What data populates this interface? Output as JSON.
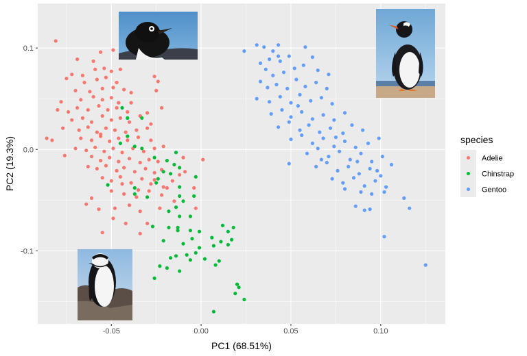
{
  "chart_data": {
    "type": "scatter",
    "xlabel": "PC1 (68.51%)",
    "ylabel": "PC2 (19.3%)",
    "xlim": [
      -0.091,
      0.136
    ],
    "ylim": [
      -0.172,
      0.144
    ],
    "x_ticks": [
      -0.05,
      0.0,
      0.05,
      0.1
    ],
    "x_tick_labels": [
      "-0.05",
      "0.00",
      "0.05",
      "0.10"
    ],
    "y_ticks": [
      -0.1,
      0.0,
      0.1
    ],
    "y_tick_labels": [
      "-0.1",
      "0.0",
      "0.1"
    ],
    "grid": true,
    "legend": {
      "title": "species",
      "position": "right"
    },
    "series": [
      {
        "name": "Adelie",
        "color": "#F8766D",
        "points": [
          [
            -0.081,
            0.107
          ],
          [
            -0.056,
            0.096
          ],
          [
            -0.069,
            0.089
          ],
          [
            -0.06,
            0.087
          ],
          [
            -0.049,
            0.098
          ],
          [
            -0.066,
            0.073
          ],
          [
            -0.059,
            0.079
          ],
          [
            -0.054,
            0.08
          ],
          [
            -0.05,
            0.077
          ],
          [
            -0.045,
            0.079
          ],
          [
            -0.072,
            0.074
          ],
          [
            -0.075,
            0.07
          ],
          [
            -0.065,
            0.066
          ],
          [
            -0.058,
            0.069
          ],
          [
            -0.053,
            0.071
          ],
          [
            -0.047,
            0.066
          ],
          [
            -0.026,
            0.072
          ],
          [
            -0.024,
            0.067
          ],
          [
            -0.07,
            0.058
          ],
          [
            -0.062,
            0.057
          ],
          [
            -0.055,
            0.06
          ],
          [
            -0.049,
            0.061
          ],
          [
            -0.043,
            0.059
          ],
          [
            -0.078,
            0.047
          ],
          [
            -0.067,
            0.049
          ],
          [
            -0.06,
            0.052
          ],
          [
            -0.055,
            0.049
          ],
          [
            -0.05,
            0.051
          ],
          [
            -0.046,
            0.046
          ],
          [
            -0.039,
            0.056
          ],
          [
            -0.025,
            0.058
          ],
          [
            -0.08,
            0.039
          ],
          [
            -0.074,
            0.037
          ],
          [
            -0.069,
            0.041
          ],
          [
            -0.063,
            0.039
          ],
          [
            -0.057,
            0.043
          ],
          [
            -0.052,
            0.039
          ],
          [
            -0.047,
            0.041
          ],
          [
            -0.041,
            0.037
          ],
          [
            -0.072,
            0.029
          ],
          [
            -0.066,
            0.031
          ],
          [
            -0.061,
            0.027
          ],
          [
            -0.055,
            0.033
          ],
          [
            -0.05,
            0.029
          ],
          [
            -0.045,
            0.031
          ],
          [
            -0.04,
            0.027
          ],
          [
            -0.034,
            0.033
          ],
          [
            -0.03,
            0.036
          ],
          [
            -0.077,
            0.021
          ],
          [
            -0.068,
            0.019
          ],
          [
            -0.063,
            0.022
          ],
          [
            -0.058,
            0.017
          ],
          [
            -0.053,
            0.021
          ],
          [
            -0.048,
            0.019
          ],
          [
            -0.042,
            0.017
          ],
          [
            -0.036,
            0.019
          ],
          [
            -0.03,
            0.021
          ],
          [
            -0.022,
            0.041
          ],
          [
            -0.086,
            0.011
          ],
          [
            -0.083,
            0.009
          ],
          [
            -0.067,
            0.011
          ],
          [
            -0.061,
            0.009
          ],
          [
            -0.056,
            0.013
          ],
          [
            -0.051,
            0.008
          ],
          [
            -0.046,
            0.011
          ],
          [
            -0.041,
            0.009
          ],
          [
            -0.035,
            0.012
          ],
          [
            -0.028,
            0.009
          ],
          [
            -0.07,
            0.001
          ],
          [
            -0.064,
            -0.001
          ],
          [
            -0.059,
            0.002
          ],
          [
            -0.054,
            -0.002
          ],
          [
            -0.049,
            0.001
          ],
          [
            -0.044,
            -0.003
          ],
          [
            -0.038,
            0.001
          ],
          [
            -0.032,
            -0.002
          ],
          [
            -0.026,
            0.001
          ],
          [
            -0.021,
            0.003
          ],
          [
            -0.076,
            -0.006
          ],
          [
            -0.061,
            -0.007
          ],
          [
            -0.056,
            -0.011
          ],
          [
            -0.051,
            -0.008
          ],
          [
            -0.046,
            -0.012
          ],
          [
            -0.04,
            -0.009
          ],
          [
            -0.034,
            -0.013
          ],
          [
            -0.029,
            -0.01
          ],
          [
            -0.024,
            -0.012
          ],
          [
            -0.01,
            -0.008
          ],
          [
            -0.063,
            -0.017
          ],
          [
            -0.058,
            -0.019
          ],
          [
            -0.053,
            -0.016
          ],
          [
            -0.047,
            -0.021
          ],
          [
            -0.043,
            -0.018
          ],
          [
            -0.037,
            -0.022
          ],
          [
            -0.031,
            -0.019
          ],
          [
            -0.026,
            -0.023
          ],
          [
            -0.022,
            -0.02
          ],
          [
            -0.012,
            -0.025
          ],
          [
            0.001,
            -0.01
          ],
          [
            -0.055,
            -0.028
          ],
          [
            -0.05,
            -0.031
          ],
          [
            -0.045,
            -0.027
          ],
          [
            -0.039,
            -0.033
          ],
          [
            -0.033,
            -0.029
          ],
          [
            -0.028,
            -0.034
          ],
          [
            -0.021,
            -0.037
          ],
          [
            -0.016,
            -0.031
          ],
          [
            -0.05,
            -0.041
          ],
          [
            -0.043,
            -0.044
          ],
          [
            -0.036,
            -0.047
          ],
          [
            -0.029,
            -0.041
          ],
          [
            -0.022,
            -0.045
          ],
          [
            -0.015,
            -0.051
          ],
          [
            -0.004,
            -0.038
          ],
          [
            -0.061,
            -0.048
          ],
          [
            -0.048,
            -0.058
          ],
          [
            -0.04,
            -0.055
          ],
          [
            -0.034,
            -0.061
          ],
          [
            -0.023,
            -0.058
          ],
          [
            -0.003,
            -0.058
          ],
          [
            -0.064,
            -0.054
          ],
          [
            -0.057,
            -0.059
          ],
          [
            -0.049,
            -0.068
          ],
          [
            -0.042,
            -0.073
          ],
          [
            -0.03,
            -0.073
          ],
          [
            -0.055,
            -0.082
          ],
          [
            -0.034,
            -0.083
          ],
          [
            -0.019,
            -0.038
          ],
          [
            -0.026,
            -0.03
          ],
          [
            -0.044,
            -0.034
          ],
          [
            -0.009,
            -0.022
          ],
          [
            -0.056,
            0.015
          ],
          [
            -0.039,
            0.046
          ],
          [
            -0.028,
            0.025
          ],
          [
            -0.035,
            -0.04
          ]
        ]
      },
      {
        "name": "Chinstrap",
        "color": "#00BA38",
        "points": [
          [
            -0.044,
            0.041
          ],
          [
            -0.041,
            0.031
          ],
          [
            -0.033,
            0.031
          ],
          [
            -0.041,
            0.013
          ],
          [
            -0.037,
            0.003
          ],
          [
            -0.045,
            0.006
          ],
          [
            -0.033,
            0.001
          ],
          [
            -0.014,
            -0.003
          ],
          [
            -0.026,
            -0.008
          ],
          [
            -0.019,
            -0.011
          ],
          [
            -0.015,
            -0.015
          ],
          [
            -0.012,
            -0.018
          ],
          [
            -0.021,
            -0.022
          ],
          [
            -0.024,
            -0.029
          ],
          [
            -0.017,
            -0.024
          ],
          [
            -0.012,
            -0.037
          ],
          [
            -0.003,
            -0.027
          ],
          [
            -0.025,
            -0.033
          ],
          [
            -0.037,
            -0.038
          ],
          [
            -0.037,
            -0.044
          ],
          [
            -0.03,
            -0.047
          ],
          [
            -0.012,
            -0.046
          ],
          [
            -0.004,
            -0.046
          ],
          [
            -0.01,
            -0.051
          ],
          [
            -0.014,
            -0.057
          ],
          [
            -0.018,
            -0.061
          ],
          [
            -0.012,
            -0.066
          ],
          [
            -0.006,
            -0.066
          ],
          [
            -0.013,
            -0.077
          ],
          [
            -0.018,
            -0.077
          ],
          [
            -0.027,
            -0.076
          ],
          [
            -0.013,
            -0.08
          ],
          [
            -0.006,
            -0.08
          ],
          [
            -0.001,
            -0.081
          ],
          [
            -0.005,
            -0.088
          ],
          [
            0.006,
            -0.087
          ],
          [
            0.012,
            -0.075
          ],
          [
            0.015,
            -0.081
          ],
          [
            0.011,
            -0.091
          ],
          [
            0.018,
            -0.077
          ],
          [
            0.017,
            -0.089
          ],
          [
            0.015,
            -0.094
          ],
          [
            0.007,
            -0.095
          ],
          [
            -0.001,
            -0.097
          ],
          [
            -0.01,
            -0.093
          ],
          [
            -0.021,
            -0.09
          ],
          [
            -0.003,
            -0.102
          ],
          [
            -0.008,
            -0.104
          ],
          [
            -0.014,
            -0.105
          ],
          [
            -0.017,
            -0.107
          ],
          [
            -0.006,
            -0.109
          ],
          [
            0.002,
            -0.108
          ],
          [
            0.01,
            -0.11
          ],
          [
            0.008,
            -0.114
          ],
          [
            -0.019,
            -0.117
          ],
          [
            -0.026,
            -0.127
          ],
          [
            -0.012,
            -0.12
          ],
          [
            -0.023,
            -0.115
          ],
          [
            0.02,
            -0.133
          ],
          [
            0.021,
            -0.136
          ],
          [
            0.019,
            -0.142
          ],
          [
            0.024,
            -0.148
          ],
          [
            0.007,
            -0.16
          ],
          [
            -0.052,
            -0.035
          ]
        ]
      },
      {
        "name": "Gentoo",
        "color": "#619CFF",
        "points": [
          [
            0.024,
            0.097
          ],
          [
            0.031,
            0.103
          ],
          [
            0.035,
            0.101
          ],
          [
            0.04,
            0.097
          ],
          [
            0.043,
            0.103
          ],
          [
            0.038,
            0.089
          ],
          [
            0.044,
            0.087
          ],
          [
            0.049,
            0.092
          ],
          [
            0.058,
            0.101
          ],
          [
            0.062,
            0.091
          ],
          [
            0.033,
            0.085
          ],
          [
            0.036,
            0.079
          ],
          [
            0.04,
            0.073
          ],
          [
            0.046,
            0.076
          ],
          [
            0.052,
            0.08
          ],
          [
            0.057,
            0.083
          ],
          [
            0.065,
            0.078
          ],
          [
            0.071,
            0.074
          ],
          [
            0.033,
            0.067
          ],
          [
            0.037,
            0.061
          ],
          [
            0.042,
            0.064
          ],
          [
            0.048,
            0.06
          ],
          [
            0.053,
            0.069
          ],
          [
            0.058,
            0.062
          ],
          [
            0.064,
            0.066
          ],
          [
            0.07,
            0.06
          ],
          [
            0.031,
            0.05
          ],
          [
            0.038,
            0.047
          ],
          [
            0.044,
            0.052
          ],
          [
            0.05,
            0.046
          ],
          [
            0.055,
            0.054
          ],
          [
            0.061,
            0.048
          ],
          [
            0.067,
            0.051
          ],
          [
            0.073,
            0.045
          ],
          [
            0.039,
            0.035
          ],
          [
            0.045,
            0.039
          ],
          [
            0.05,
            0.032
          ],
          [
            0.056,
            0.037
          ],
          [
            0.062,
            0.03
          ],
          [
            0.068,
            0.034
          ],
          [
            0.074,
            0.029
          ],
          [
            0.08,
            0.036
          ],
          [
            0.043,
            0.022
          ],
          [
            0.049,
            0.027
          ],
          [
            0.055,
            0.019
          ],
          [
            0.06,
            0.024
          ],
          [
            0.066,
            0.017
          ],
          [
            0.072,
            0.021
          ],
          [
            0.079,
            0.016
          ],
          [
            0.084,
            0.024
          ],
          [
            0.09,
            0.019
          ],
          [
            0.05,
            0.01
          ],
          [
            0.056,
            0.014
          ],
          [
            0.062,
            0.006
          ],
          [
            0.068,
            0.011
          ],
          [
            0.074,
            0.003
          ],
          [
            0.08,
            0.008
          ],
          [
            0.086,
            0.002
          ],
          [
            0.093,
            0.006
          ],
          [
            0.099,
            0.011
          ],
          [
            0.059,
            -0.004
          ],
          [
            0.065,
            0.001
          ],
          [
            0.071,
            -0.007
          ],
          [
            0.077,
            -0.002
          ],
          [
            0.083,
            -0.01
          ],
          [
            0.089,
            -0.004
          ],
          [
            0.095,
            -0.012
          ],
          [
            0.101,
            -0.007
          ],
          [
            0.049,
            -0.014
          ],
          [
            0.064,
            -0.017
          ],
          [
            0.07,
            -0.013
          ],
          [
            0.076,
            -0.021
          ],
          [
            0.082,
            -0.017
          ],
          [
            0.088,
            -0.024
          ],
          [
            0.094,
            -0.019
          ],
          [
            0.1,
            -0.026
          ],
          [
            0.106,
            -0.015
          ],
          [
            0.073,
            -0.029
          ],
          [
            0.079,
            -0.033
          ],
          [
            0.085,
            -0.028
          ],
          [
            0.091,
            -0.036
          ],
          [
            0.097,
            -0.031
          ],
          [
            0.103,
            -0.037
          ],
          [
            0.08,
            -0.039
          ],
          [
            0.089,
            -0.042
          ],
          [
            0.095,
            -0.044
          ],
          [
            0.102,
            -0.042
          ],
          [
            0.086,
            -0.056
          ],
          [
            0.091,
            -0.06
          ],
          [
            0.094,
            -0.059
          ],
          [
            0.113,
            -0.048
          ],
          [
            0.116,
            -0.058
          ],
          [
            0.102,
            -0.086
          ],
          [
            0.125,
            -0.114
          ],
          [
            0.067,
            -0.01
          ],
          [
            0.043,
            0.092
          ],
          [
            0.054,
            0.043
          ],
          [
            0.075,
            0.012
          ],
          [
            0.087,
            -0.012
          ],
          [
            0.098,
            -0.021
          ]
        ]
      }
    ]
  },
  "legend": {
    "title": "species",
    "items": [
      {
        "label": "Adelie",
        "color": "#F8766D"
      },
      {
        "label": "Chinstrap",
        "color": "#00BA38"
      },
      {
        "label": "Gentoo",
        "color": "#619CFF"
      }
    ]
  }
}
